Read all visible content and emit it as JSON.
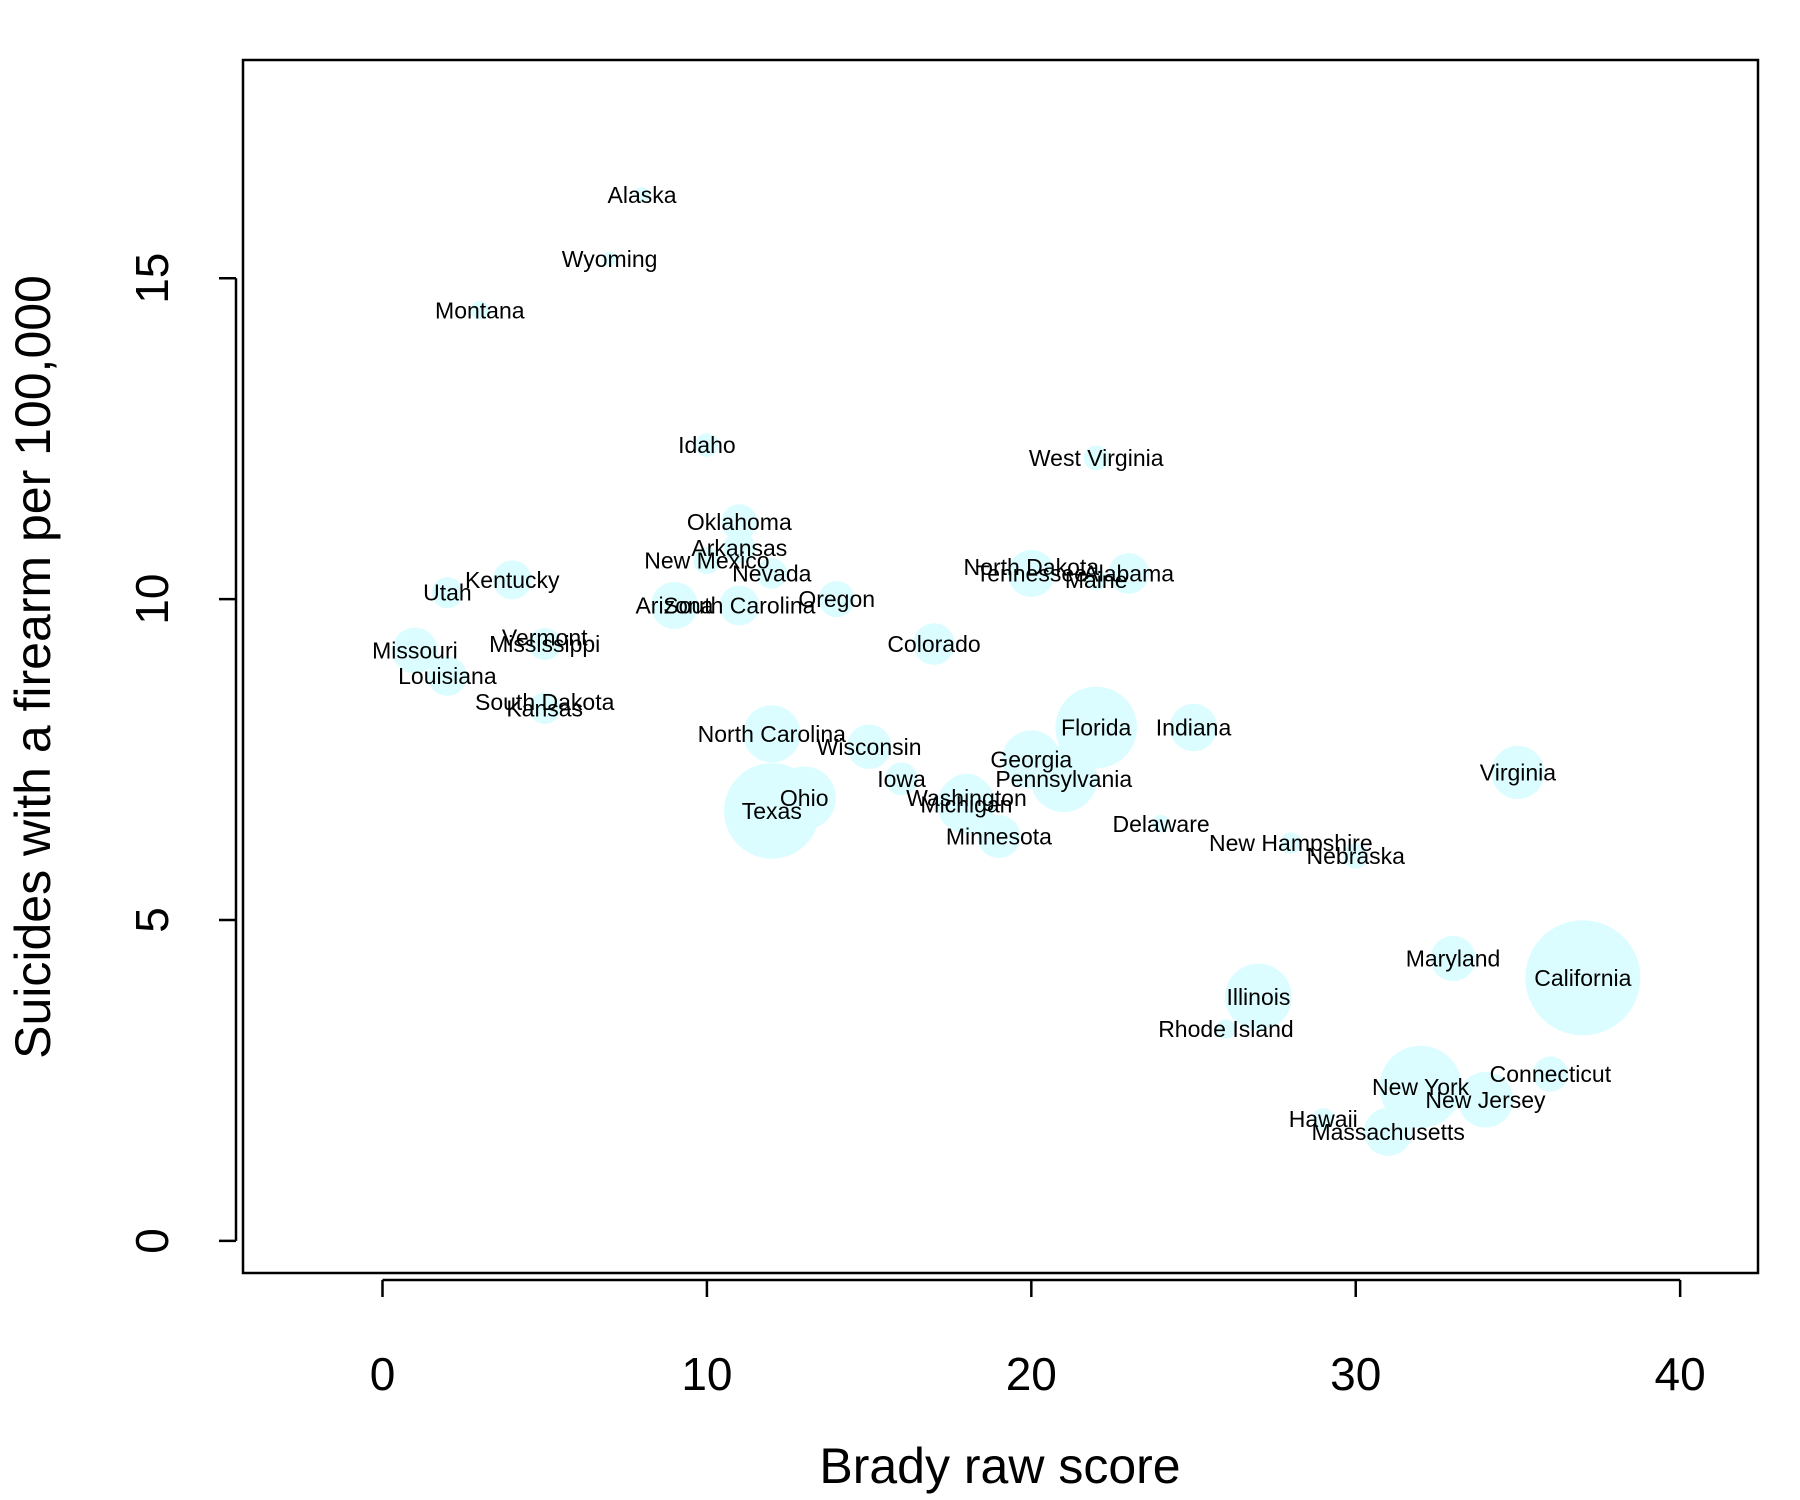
{
  "chart_data": {
    "type": "scatter",
    "title": "",
    "xlabel": "Brady raw score",
    "ylabel": "Suicides with a firearm per 100,000",
    "xlim": [
      -4.3,
      42.4
    ],
    "ylim": [
      -0.5,
      18.4
    ],
    "xticks": [
      0,
      10,
      20,
      30,
      40
    ],
    "yticks": [
      0,
      5,
      10,
      15
    ],
    "xtick_labels": [
      "0",
      "10",
      "20",
      "30",
      "40"
    ],
    "ytick_labels": [
      "0",
      "5",
      "10",
      "15"
    ],
    "grid": false,
    "legend": "none",
    "bubble_color": "#dcfdff",
    "size_encoding": "bubble area varies by state",
    "points": [
      {
        "label": "Alaska",
        "x": 8,
        "y": 16.3,
        "size": 0.7
      },
      {
        "label": "Wyoming",
        "x": 7,
        "y": 15.3,
        "size": 0.6
      },
      {
        "label": "Montana",
        "x": 3,
        "y": 14.5,
        "size": 1.0
      },
      {
        "label": "Idaho",
        "x": 10,
        "y": 12.4,
        "size": 1.6
      },
      {
        "label": "West Virginia",
        "x": 22,
        "y": 12.2,
        "size": 1.8
      },
      {
        "label": "Oklahoma",
        "x": 11,
        "y": 11.2,
        "size": 3.7
      },
      {
        "label": "Arkansas",
        "x": 11,
        "y": 10.8,
        "size": 2.9
      },
      {
        "label": "New Mexico",
        "x": 10,
        "y": 10.6,
        "size": 2.1
      },
      {
        "label": "Nevada",
        "x": 12,
        "y": 10.4,
        "size": 2.7
      },
      {
        "label": "North Dakota",
        "x": 20,
        "y": 10.5,
        "size": 0.7
      },
      {
        "label": "Tennessee",
        "x": 20,
        "y": 10.4,
        "size": 6.4
      },
      {
        "label": "Alabama",
        "x": 23,
        "y": 10.4,
        "size": 4.8
      },
      {
        "label": "Maine",
        "x": 22,
        "y": 10.3,
        "size": 1.3
      },
      {
        "label": "Kentucky",
        "x": 4,
        "y": 10.3,
        "size": 4.4
      },
      {
        "label": "Utah",
        "x": 2,
        "y": 10.1,
        "size": 2.8
      },
      {
        "label": "Arizona",
        "x": 9,
        "y": 9.9,
        "size": 6.4
      },
      {
        "label": "South Carolina",
        "x": 11,
        "y": 9.9,
        "size": 4.6
      },
      {
        "label": "Oregon",
        "x": 14,
        "y": 10.0,
        "size": 3.8
      },
      {
        "label": "Colorado",
        "x": 17,
        "y": 9.3,
        "size": 5.0
      },
      {
        "label": "Vermont",
        "x": 5,
        "y": 9.4,
        "size": 0.6
      },
      {
        "label": "Mississippi",
        "x": 5,
        "y": 9.3,
        "size": 3.0
      },
      {
        "label": "Missouri",
        "x": 1,
        "y": 9.2,
        "size": 6.0
      },
      {
        "label": "Louisiana",
        "x": 2,
        "y": 8.8,
        "size": 4.5
      },
      {
        "label": "South Dakota",
        "x": 5,
        "y": 8.4,
        "size": 0.8
      },
      {
        "label": "Kansas",
        "x": 5,
        "y": 8.3,
        "size": 2.9
      },
      {
        "label": "North Carolina",
        "x": 12,
        "y": 7.9,
        "size": 9.5
      },
      {
        "label": "Florida",
        "x": 22,
        "y": 8.0,
        "size": 19.3
      },
      {
        "label": "Indiana",
        "x": 25,
        "y": 8.0,
        "size": 6.5
      },
      {
        "label": "Wisconsin",
        "x": 15,
        "y": 7.7,
        "size": 5.7
      },
      {
        "label": "Georgia",
        "x": 20,
        "y": 7.5,
        "size": 9.9
      },
      {
        "label": "Pennsylvania",
        "x": 21,
        "y": 7.2,
        "size": 12.8
      },
      {
        "label": "Iowa",
        "x": 16,
        "y": 7.2,
        "size": 3.1
      },
      {
        "label": "Washington",
        "x": 18,
        "y": 6.9,
        "size": 6.9
      },
      {
        "label": "Michigan",
        "x": 18,
        "y": 6.8,
        "size": 9.9
      },
      {
        "label": "Ohio",
        "x": 13,
        "y": 6.9,
        "size": 11.6
      },
      {
        "label": "Texas",
        "x": 12,
        "y": 6.7,
        "size": 26.4
      },
      {
        "label": "Minnesota",
        "x": 19,
        "y": 6.3,
        "size": 5.4
      },
      {
        "label": "Delaware",
        "x": 24,
        "y": 6.5,
        "size": 0.9
      },
      {
        "label": "Virginia",
        "x": 35,
        "y": 7.3,
        "size": 8.2
      },
      {
        "label": "New Hampshire",
        "x": 28,
        "y": 6.2,
        "size": 1.3
      },
      {
        "label": "Nebraska",
        "x": 30,
        "y": 6.0,
        "size": 1.9
      },
      {
        "label": "Maryland",
        "x": 33,
        "y": 4.4,
        "size": 5.9
      },
      {
        "label": "California",
        "x": 37,
        "y": 4.1,
        "size": 38.3
      },
      {
        "label": "Illinois",
        "x": 27,
        "y": 3.8,
        "size": 12.9
      },
      {
        "label": "Rhode Island",
        "x": 26,
        "y": 3.3,
        "size": 1.1
      },
      {
        "label": "Connecticut",
        "x": 36,
        "y": 2.6,
        "size": 3.6
      },
      {
        "label": "New York",
        "x": 32,
        "y": 2.4,
        "size": 19.6
      },
      {
        "label": "New Jersey",
        "x": 34,
        "y": 2.2,
        "size": 8.9
      },
      {
        "label": "Hawaii",
        "x": 29,
        "y": 1.9,
        "size": 1.4
      },
      {
        "label": "Massachusetts",
        "x": 31,
        "y": 1.7,
        "size": 6.7
      }
    ]
  }
}
